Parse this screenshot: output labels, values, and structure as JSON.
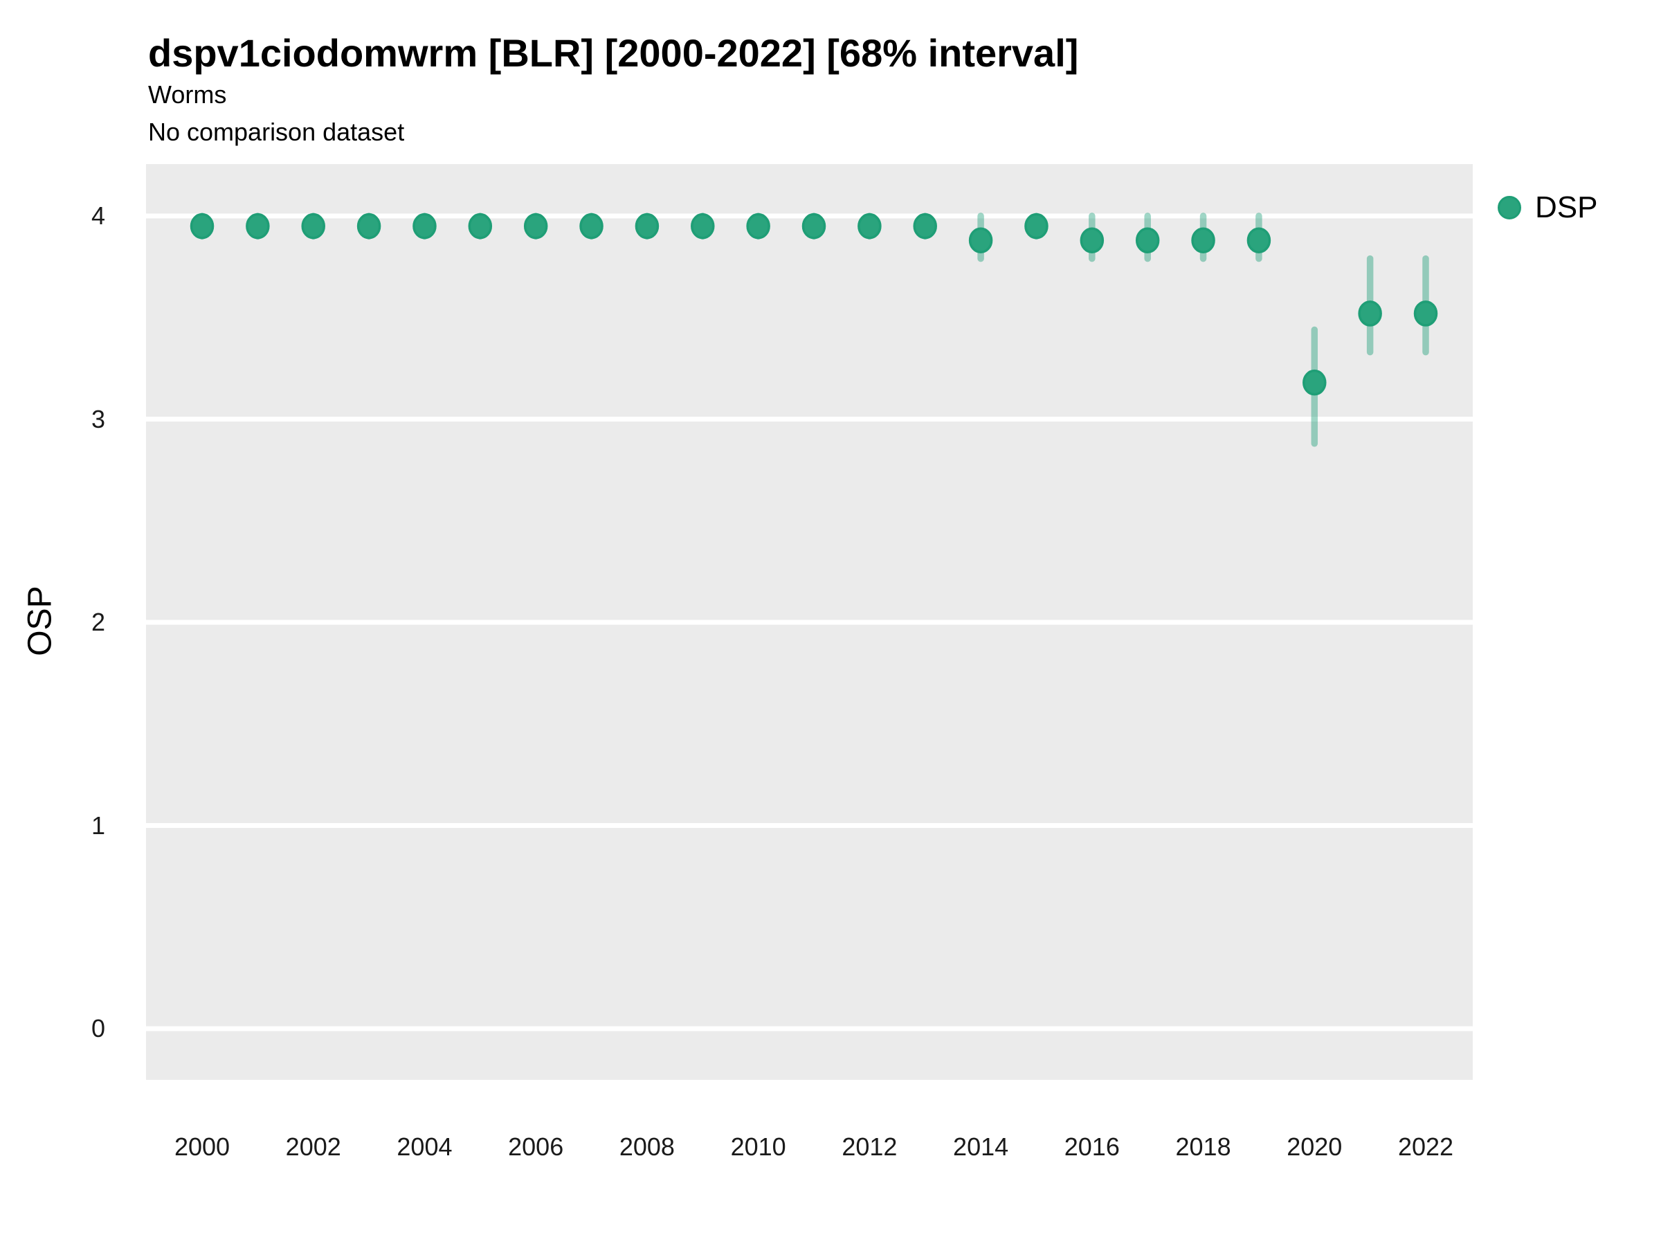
{
  "header": {
    "title": "dspv1ciodomwrm [BLR] [2000-2022] [68% interval]",
    "subtitle": "Worms",
    "note": "No comparison dataset"
  },
  "axes": {
    "y_label": "OSP",
    "y_ticks": [
      4,
      3,
      2,
      1,
      0
    ],
    "x_ticks": [
      2000,
      2002,
      2004,
      2006,
      2008,
      2010,
      2012,
      2014,
      2016,
      2018,
      2020,
      2022
    ]
  },
  "legend": {
    "position": "right",
    "items": [
      {
        "label": "DSP",
        "marker": "circle-icon",
        "color": "#2aa47d"
      }
    ]
  },
  "chart_data": {
    "type": "scatter",
    "subtype": "pointrange",
    "title": "dspv1ciodomwrm [BLR] [2000-2022] [68% interval]",
    "subtitle": "Worms",
    "note": "No comparison dataset",
    "interval_label": "68% interval",
    "xlabel": "",
    "ylabel": "OSP",
    "xlim": [
      1999,
      2023
    ],
    "ylim": [
      -0.25,
      4.25
    ],
    "x_ticks": [
      2000,
      2002,
      2004,
      2006,
      2008,
      2010,
      2012,
      2014,
      2016,
      2018,
      2020,
      2022
    ],
    "y_ticks": [
      4,
      3,
      2,
      1,
      0
    ],
    "grid": "horizontal-major-only",
    "legend_position": "right",
    "series": [
      {
        "name": "DSP",
        "x": [
          2000,
          2001,
          2002,
          2003,
          2004,
          2005,
          2006,
          2007,
          2008,
          2009,
          2010,
          2011,
          2012,
          2013,
          2014,
          2015,
          2016,
          2017,
          2018,
          2019,
          2020,
          2021,
          2022
        ],
        "y": [
          3.95,
          3.95,
          3.95,
          3.95,
          3.95,
          3.95,
          3.95,
          3.95,
          3.95,
          3.95,
          3.95,
          3.95,
          3.95,
          3.95,
          3.88,
          3.95,
          3.88,
          3.88,
          3.88,
          3.88,
          3.18,
          3.52,
          3.52
        ],
        "y_low": [
          3.9,
          3.9,
          3.9,
          3.9,
          3.9,
          3.9,
          3.9,
          3.9,
          3.9,
          3.9,
          3.9,
          3.9,
          3.9,
          3.9,
          3.79,
          3.9,
          3.79,
          3.79,
          3.79,
          3.79,
          2.88,
          3.33,
          3.33
        ],
        "y_high": [
          4.0,
          4.0,
          4.0,
          4.0,
          4.0,
          4.0,
          4.0,
          4.0,
          4.0,
          4.0,
          4.0,
          4.0,
          4.0,
          4.0,
          4.0,
          4.0,
          4.0,
          4.0,
          4.0,
          4.0,
          3.44,
          3.79,
          3.79
        ]
      }
    ],
    "colors": {
      "point_fill": "#2aa47d",
      "point_stroke": "#1f9e76",
      "interval_bar": "rgba(27,158,119,0.42)",
      "panel_bg": "#ebebeb",
      "gridline": "#ffffff",
      "text": "#000000"
    }
  }
}
